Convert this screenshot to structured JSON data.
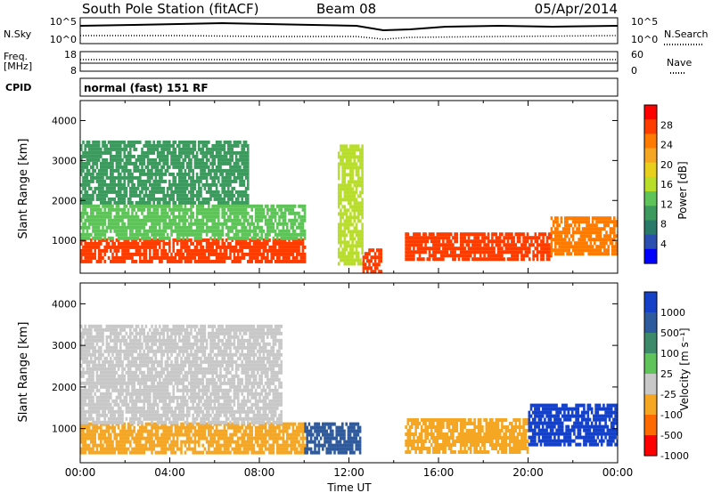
{
  "header": {
    "station": "South Pole Station (fitACF)",
    "beam": "Beam 08",
    "date": "05/Apr/2014"
  },
  "top_panels": {
    "nsky_label": "N.Sky",
    "nsearch_label": "N.Search",
    "noise_ticks_left": [
      "10^5",
      "10^0"
    ],
    "noise_ticks_right": [
      "10^5",
      "10^0"
    ],
    "freq_label_1": "Freq.",
    "freq_label_2": "[MHz]",
    "freq_ticks": [
      "18",
      "8"
    ],
    "nave_label": "Nave",
    "nave_ticks": [
      "60",
      "0"
    ],
    "cpid_label": "CPID",
    "cpid_text": "normal (fast) 151 RF"
  },
  "colorbar_power": {
    "label": "Power [dB]",
    "ticks": [
      "28",
      "24",
      "20",
      "16",
      "12",
      "8",
      "4"
    ],
    "colors": [
      "#ff0000",
      "#ff3c00",
      "#ff7a00",
      "#f5a623",
      "#e8cf1b",
      "#b8de2a",
      "#5ec45a",
      "#3d9a5e",
      "#2a7a6a",
      "#2a4fb0",
      "#0000ff"
    ]
  },
  "colorbar_velocity": {
    "label": "Velocity [m s⁻¹]",
    "ticks": [
      "1000",
      "500",
      "100",
      "25",
      "-25",
      "-100",
      "-500",
      "-1000"
    ],
    "colors": [
      "#1540c8",
      "#2e5a9e",
      "#3d8a6a",
      "#5fc45a",
      "#c8c8c8",
      "#f5a623",
      "#ff6a00",
      "#ff0000"
    ]
  },
  "chart_data": [
    {
      "type": "heatmap",
      "title": "",
      "xlabel": "",
      "ylabel": "Slant Range [km]",
      "colorbar_label": "Power [dB]",
      "xlim": [
        0,
        24
      ],
      "ylim": [
        180,
        4500
      ],
      "yticks": [
        1000,
        2000,
        3000,
        4000
      ],
      "ytick_labels": [
        "1000",
        "2000",
        "3000",
        "4000"
      ],
      "regions": [
        {
          "t0": 0,
          "t1": 10,
          "r0": 500,
          "r1": 1050,
          "value": 28
        },
        {
          "t0": 0,
          "t1": 10,
          "r0": 1050,
          "r1": 1900,
          "value": 13
        },
        {
          "t0": 0,
          "t1": 7.5,
          "r0": 1900,
          "r1": 3500,
          "value": 10
        },
        {
          "t0": 11.5,
          "t1": 12.6,
          "r0": 400,
          "r1": 3400,
          "value": 15
        },
        {
          "t0": 12.6,
          "t1": 13.4,
          "r0": 180,
          "r1": 800,
          "value": 26
        },
        {
          "t0": 14.5,
          "t1": 21,
          "r0": 500,
          "r1": 1200,
          "value": 27
        },
        {
          "t0": 21,
          "t1": 24,
          "r0": 700,
          "r1": 1600,
          "value": 25
        }
      ]
    },
    {
      "type": "heatmap",
      "title": "",
      "xlabel": "Time UT",
      "ylabel": "Slant Range [km]",
      "colorbar_label": "Velocity [m s⁻¹]",
      "xlim": [
        0,
        24
      ],
      "ylim": [
        180,
        4500
      ],
      "xticks": [
        0,
        4,
        8,
        12,
        16,
        20,
        24
      ],
      "xtick_labels": [
        "00:00",
        "04:00",
        "08:00",
        "12:00",
        "16:00",
        "20:00",
        "00:00"
      ],
      "yticks": [
        1000,
        2000,
        3000,
        4000
      ],
      "ytick_labels": [
        "1000",
        "2000",
        "3000",
        "4000"
      ],
      "regions": [
        {
          "t0": 0,
          "t1": 10,
          "r0": 450,
          "r1": 1150,
          "value": -150
        },
        {
          "t0": 0,
          "t1": 9,
          "r0": 1150,
          "r1": 3500,
          "value": 0
        },
        {
          "t0": 10,
          "t1": 12.5,
          "r0": 450,
          "r1": 1150,
          "value": 600
        },
        {
          "t0": 14.5,
          "t1": 20,
          "r0": 450,
          "r1": 1250,
          "value": -80
        },
        {
          "t0": 20,
          "t1": 24,
          "r0": 600,
          "r1": 1600,
          "value": 900
        }
      ]
    }
  ]
}
